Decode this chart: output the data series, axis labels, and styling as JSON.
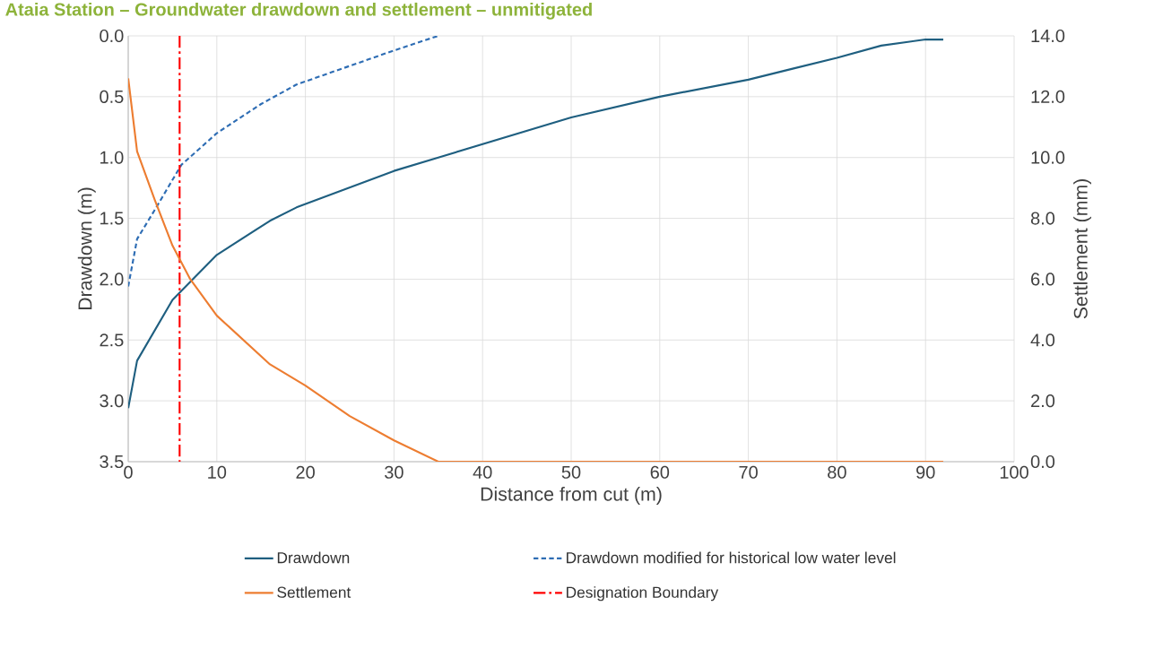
{
  "chart_data": {
    "type": "line",
    "title": "Ataia Station – Groundwater drawdown and settlement – unmitigated",
    "xlabel": "Distance from cut (m)",
    "ylabel": "Drawdown (m)",
    "y2label": "Settlement (mm)",
    "xlim": [
      0,
      100
    ],
    "xticks": [
      0,
      10,
      20,
      30,
      40,
      50,
      60,
      70,
      80,
      90,
      100
    ],
    "ylim": [
      3.5,
      0.0
    ],
    "yticks": [
      {
        "value": 0.0,
        "label": "0.0"
      },
      {
        "value": 0.5,
        "label": "0.5"
      },
      {
        "value": 1.0,
        "label": "1.0"
      },
      {
        "value": 1.5,
        "label": "1.5"
      },
      {
        "value": 2.0,
        "label": "2.0"
      },
      {
        "value": 2.5,
        "label": "2.5"
      },
      {
        "value": 3.0,
        "label": "3.0"
      },
      {
        "value": 3.5,
        "label": "3.5"
      }
    ],
    "y2lim": [
      0,
      14
    ],
    "y2ticks": [
      {
        "value": 0,
        "label": "0.0"
      },
      {
        "value": 2,
        "label": "2.0"
      },
      {
        "value": 4,
        "label": "4.0"
      },
      {
        "value": 6,
        "label": "6.0"
      },
      {
        "value": 8,
        "label": "8.0"
      },
      {
        "value": 10,
        "label": "10.0"
      },
      {
        "value": 12,
        "label": "12.0"
      },
      {
        "value": 14,
        "label": "14.0"
      }
    ],
    "grid": true,
    "legend": "bottom",
    "marker": "none",
    "series": [
      {
        "name": "Drawdown",
        "color": "#1f5f80",
        "line_style": "solid",
        "x": [
          0,
          1,
          3,
          5,
          10,
          16,
          19,
          30,
          35,
          50,
          60,
          70,
          75,
          80,
          85,
          90,
          92
        ],
        "values": [
          3.06,
          2.67,
          2.42,
          2.17,
          1.8,
          1.52,
          1.41,
          1.11,
          1.0,
          0.67,
          0.5,
          0.36,
          0.27,
          0.18,
          0.08,
          0.03,
          0.03
        ]
      },
      {
        "name": "Drawdown modified for historical low water level",
        "color": "#2e6db4",
        "line_style": "dashed",
        "x": [
          0,
          1,
          3,
          6,
          10,
          15,
          19,
          30,
          35
        ],
        "values": [
          2.06,
          1.67,
          1.43,
          1.06,
          0.8,
          0.56,
          0.4,
          0.12,
          0.0
        ]
      },
      {
        "name": "Settlement",
        "color": "#ed7d31",
        "line_style": "solid",
        "axis": "y2",
        "x": [
          0,
          1,
          3,
          5,
          7,
          10,
          16,
          20,
          25,
          30,
          35,
          92
        ],
        "values": [
          12.6,
          10.2,
          8.6,
          7.1,
          6.0,
          4.8,
          3.2,
          2.5,
          1.5,
          0.7,
          0.0,
          0.0
        ]
      }
    ],
    "ref_lines": [
      {
        "axis": "x",
        "value": 5.8,
        "label": "Designation Boundary",
        "color": "#ff0000",
        "line_style": "dashdot"
      }
    ]
  }
}
